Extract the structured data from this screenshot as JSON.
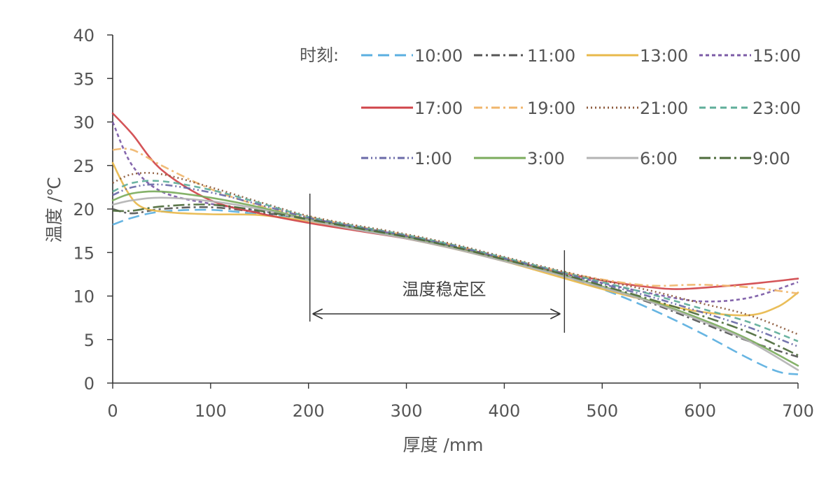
{
  "chart_data": {
    "type": "line",
    "xlabel": "厚度 /mm",
    "ylabel": "温度 /℃",
    "xlim": [
      0,
      700
    ],
    "ylim": [
      0,
      40
    ],
    "x_ticks": [
      "0",
      "100",
      "200",
      "300",
      "400",
      "500",
      "600",
      "700"
    ],
    "y_ticks": [
      "0",
      "5",
      "10",
      "15",
      "20",
      "25",
      "30",
      "35",
      "40"
    ],
    "grid": false,
    "legend_title": "时刻:",
    "legend_position": "top-right",
    "annotation": {
      "text": "温度稳定区",
      "x_start": 200,
      "x_end": 460
    },
    "series": [
      {
        "name": "10:00",
        "color": "#5aafe0",
        "dash": "long-dash",
        "x": [
          0,
          20,
          50,
          100,
          150,
          200,
          250,
          300,
          350,
          400,
          450,
          500,
          550,
          600,
          650,
          680,
          700
        ],
        "y": [
          18.2,
          19.0,
          19.7,
          19.9,
          19.4,
          18.8,
          17.8,
          16.8,
          15.6,
          14.2,
          12.6,
          10.8,
          8.5,
          5.8,
          2.8,
          1.3,
          1.0
        ]
      },
      {
        "name": "11:00",
        "color": "#555555",
        "dash": "dash-dot",
        "x": [
          0,
          20,
          50,
          100,
          150,
          200,
          250,
          300,
          350,
          400,
          450,
          500,
          550,
          600,
          650,
          700
        ],
        "y": [
          20.0,
          19.5,
          20.0,
          20.2,
          19.6,
          18.9,
          17.9,
          16.9,
          15.7,
          14.3,
          12.7,
          11.0,
          9.2,
          7.0,
          4.8,
          3.0
        ]
      },
      {
        "name": "13:00",
        "color": "#e8b94b",
        "dash": "solid",
        "x": [
          0,
          15,
          30,
          60,
          100,
          150,
          200,
          250,
          300,
          350,
          400,
          450,
          500,
          550,
          600,
          650,
          680,
          700
        ],
        "y": [
          25.3,
          22.0,
          20.2,
          19.6,
          19.4,
          19.3,
          18.6,
          17.6,
          16.6,
          15.4,
          14.0,
          12.4,
          10.8,
          9.4,
          8.2,
          7.8,
          8.8,
          10.4
        ]
      },
      {
        "name": "15:00",
        "color": "#7b5aa6",
        "dash": "short-dash",
        "x": [
          0,
          20,
          50,
          100,
          150,
          200,
          250,
          300,
          350,
          400,
          450,
          500,
          550,
          600,
          650,
          700
        ],
        "y": [
          30.0,
          25.0,
          22.0,
          20.6,
          19.8,
          18.9,
          17.9,
          16.9,
          15.7,
          14.3,
          12.9,
          11.5,
          10.3,
          9.4,
          9.8,
          11.6
        ]
      },
      {
        "name": "17:00",
        "color": "#d0454a",
        "dash": "solid",
        "x": [
          0,
          20,
          50,
          100,
          150,
          200,
          250,
          300,
          350,
          400,
          450,
          500,
          550,
          580,
          620,
          660,
          700
        ],
        "y": [
          31.0,
          28.6,
          24.5,
          21.0,
          19.5,
          18.4,
          17.5,
          16.6,
          15.5,
          14.2,
          12.9,
          11.8,
          11.0,
          10.8,
          11.1,
          11.5,
          12.0
        ]
      },
      {
        "name": "19:00",
        "color": "#f0b66c",
        "dash": "dash-dot",
        "x": [
          0,
          20,
          50,
          100,
          150,
          200,
          250,
          300,
          350,
          400,
          450,
          500,
          550,
          600,
          650,
          700
        ],
        "y": [
          26.8,
          26.8,
          25.0,
          22.3,
          20.4,
          19.1,
          18.0,
          17.0,
          15.8,
          14.4,
          13.0,
          11.9,
          11.2,
          11.3,
          11.0,
          10.3
        ]
      },
      {
        "name": "21:00",
        "color": "#8c5a3c",
        "dash": "dotted",
        "x": [
          0,
          20,
          50,
          100,
          150,
          200,
          250,
          300,
          350,
          400,
          450,
          500,
          550,
          600,
          650,
          700
        ],
        "y": [
          23.0,
          24.0,
          24.0,
          22.5,
          20.8,
          19.2,
          18.1,
          17.1,
          15.9,
          14.5,
          13.1,
          11.8,
          10.6,
          9.2,
          7.8,
          5.6
        ]
      },
      {
        "name": "23:00",
        "color": "#5fae9a",
        "dash": "medium-dash",
        "x": [
          0,
          20,
          50,
          100,
          150,
          200,
          250,
          300,
          350,
          400,
          450,
          500,
          550,
          600,
          650,
          700
        ],
        "y": [
          22.0,
          23.0,
          23.2,
          22.2,
          20.7,
          19.1,
          18.0,
          17.0,
          15.8,
          14.4,
          13.0,
          11.6,
          10.2,
          8.6,
          7.0,
          4.8
        ]
      },
      {
        "name": "1:00",
        "color": "#6a6aa8",
        "dash": "dash-dot-dot",
        "x": [
          0,
          20,
          50,
          100,
          150,
          200,
          250,
          300,
          350,
          400,
          450,
          500,
          550,
          600,
          650,
          700
        ],
        "y": [
          21.6,
          22.5,
          22.8,
          21.9,
          20.5,
          19.0,
          17.9,
          16.9,
          15.7,
          14.3,
          12.9,
          11.4,
          9.9,
          8.2,
          6.4,
          4.2
        ]
      },
      {
        "name": "3:00",
        "color": "#7bab5c",
        "dash": "solid",
        "x": [
          0,
          20,
          50,
          100,
          150,
          200,
          250,
          300,
          350,
          400,
          450,
          500,
          550,
          600,
          650,
          700
        ],
        "y": [
          21.0,
          21.8,
          22.0,
          21.3,
          20.2,
          18.8,
          17.7,
          16.7,
          15.5,
          14.1,
          12.7,
          11.1,
          9.4,
          7.4,
          5.0,
          2.0
        ]
      },
      {
        "name": "6:00",
        "color": "#b3b3b3",
        "dash": "solid",
        "x": [
          0,
          20,
          50,
          100,
          150,
          200,
          250,
          300,
          350,
          400,
          450,
          500,
          550,
          600,
          650,
          700
        ],
        "y": [
          20.5,
          21.0,
          21.3,
          20.9,
          20.0,
          18.7,
          17.6,
          16.6,
          15.4,
          14.0,
          12.6,
          11.0,
          9.3,
          7.2,
          4.8,
          1.5
        ]
      },
      {
        "name": "9:00",
        "color": "#4d6b3b",
        "dash": "long-dash-dot",
        "x": [
          0,
          20,
          50,
          100,
          150,
          200,
          250,
          300,
          350,
          400,
          450,
          500,
          550,
          600,
          650,
          700
        ],
        "y": [
          19.8,
          19.8,
          20.3,
          20.5,
          19.8,
          18.8,
          17.8,
          16.8,
          15.6,
          14.2,
          12.8,
          11.2,
          9.6,
          7.8,
          5.8,
          3.2
        ]
      }
    ]
  }
}
